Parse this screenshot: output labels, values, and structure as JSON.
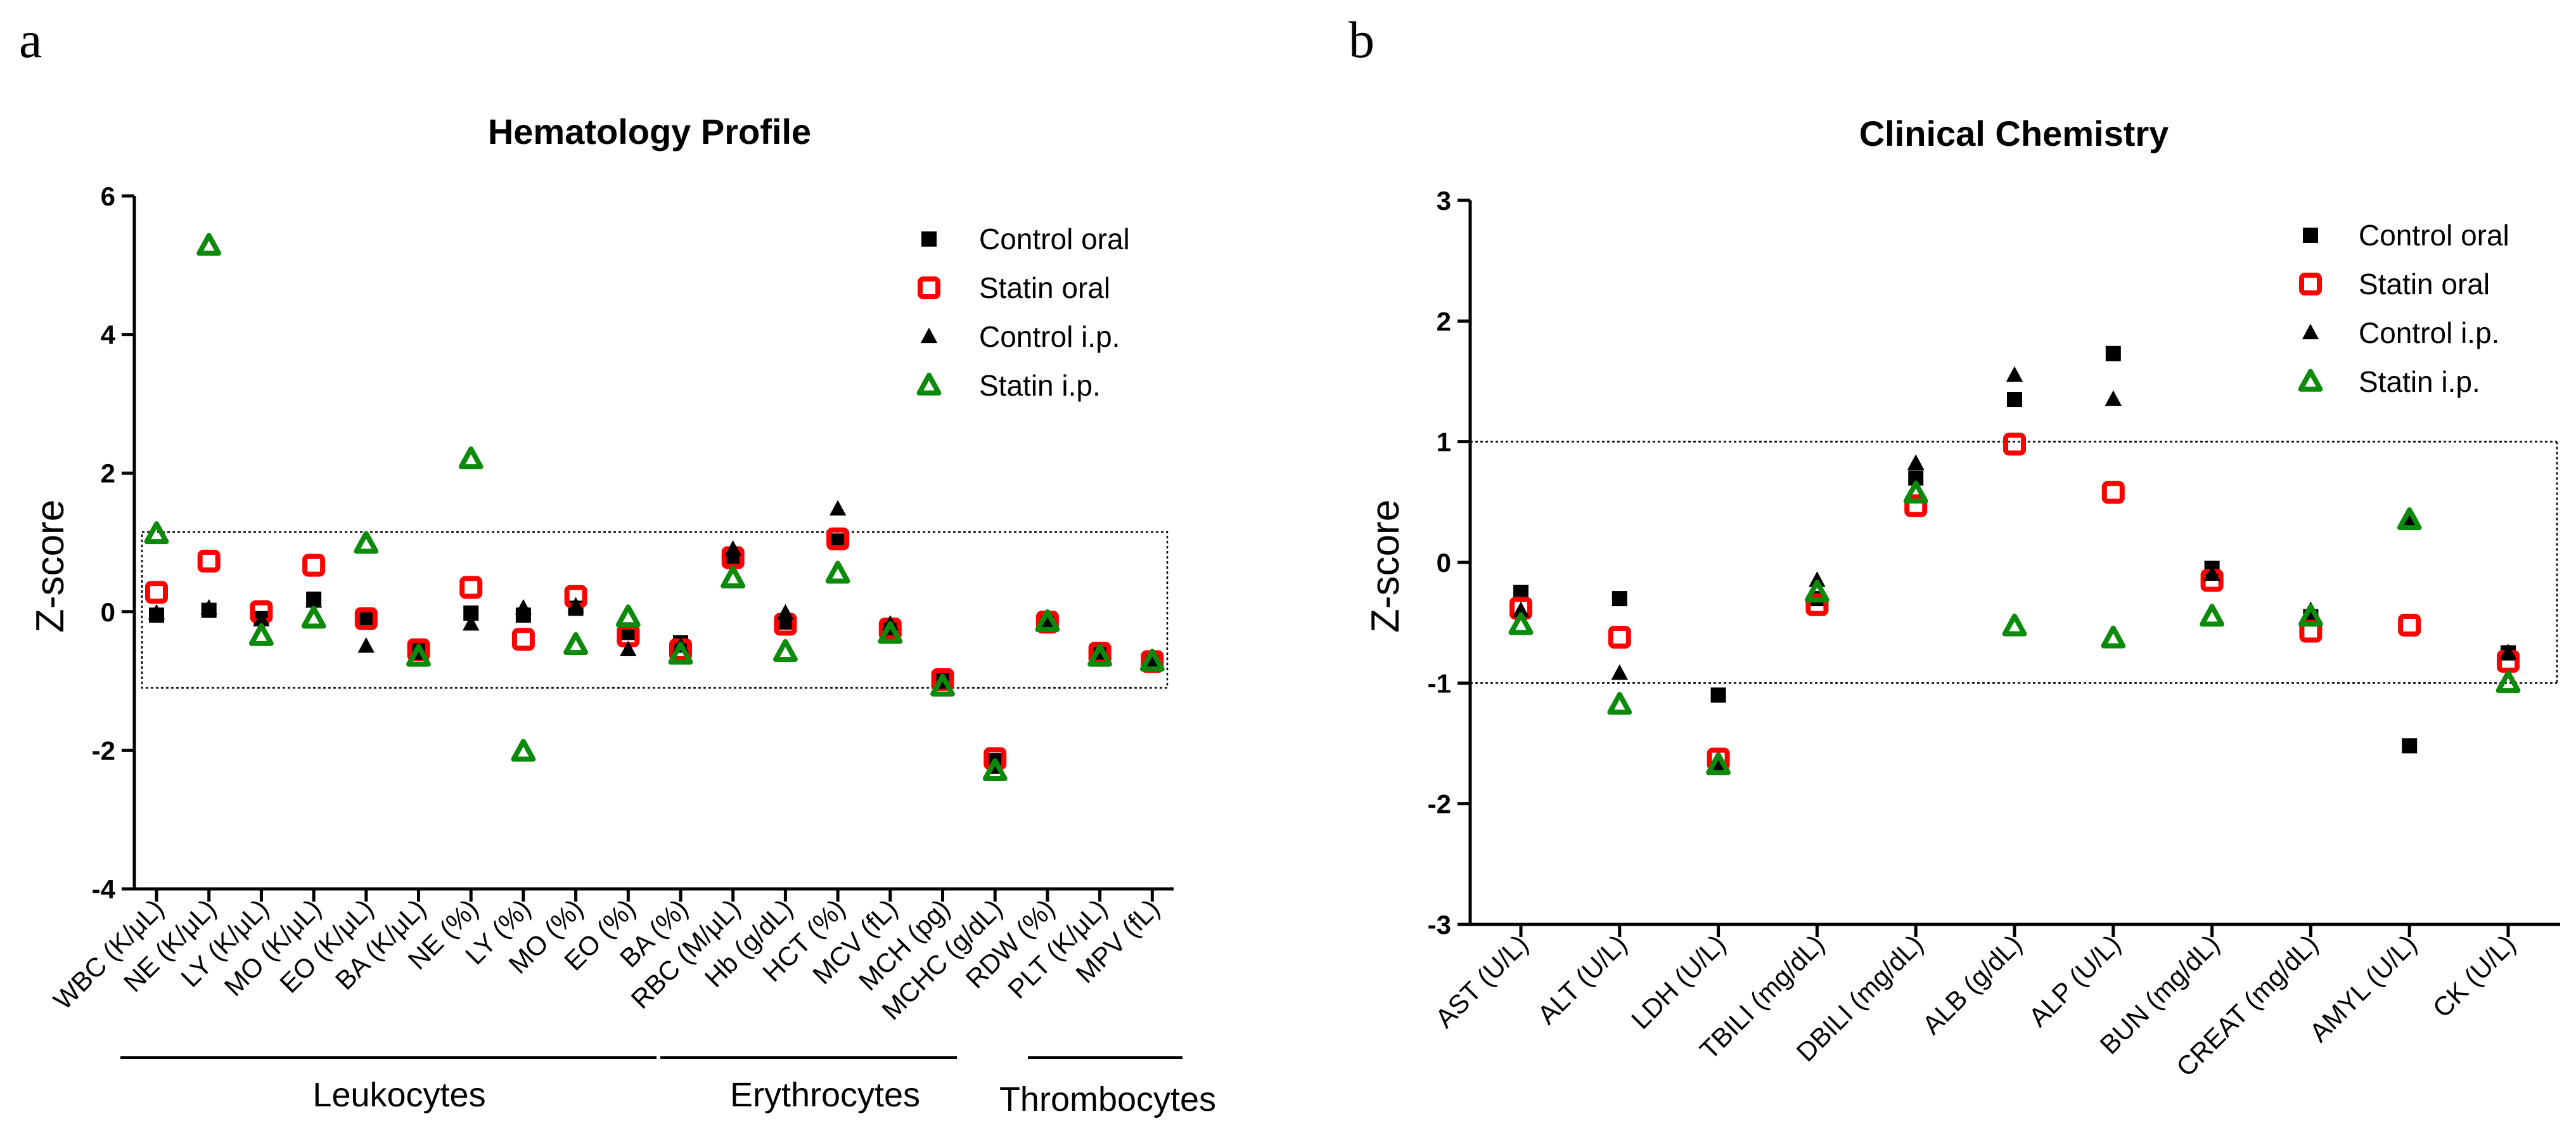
{
  "panels": [
    {
      "letter": "a",
      "title": "Hematology Profile"
    },
    {
      "letter": "b",
      "title": "Clinical Chemistry"
    }
  ],
  "legend": [
    {
      "label": "Control oral",
      "marker": "square-filled",
      "color": "#000000"
    },
    {
      "label": "Statin oral",
      "marker": "square-open",
      "color": "#ff0000"
    },
    {
      "label": "Control i.p.",
      "marker": "triangle-filled",
      "color": "#000000"
    },
    {
      "label": "Statin i.p.",
      "marker": "triangle-open",
      "color": "#0b8a0b"
    }
  ],
  "chart_data": [
    {
      "type": "scatter",
      "title": "Hematology Profile",
      "xlabel": "",
      "ylabel": "Z-score",
      "ylim": [
        -4,
        6
      ],
      "yticks": [
        "-4",
        "-2",
        "0",
        "2",
        "4",
        "6"
      ],
      "reference_band": [
        -1.1,
        1.15
      ],
      "categories": [
        "WBC (K/μL)",
        "NE (K/μL)",
        "LY (K/μL)",
        "MO (K/μL)",
        "EO (K/μL)",
        "BA (K/μL)",
        "NE (%)",
        "LY (%)",
        "MO (%)",
        "EO (%)",
        "BA (%)",
        "RBC (M/μL)",
        "Hb (g/dL)",
        "HCT (%)",
        "MCV (fL)",
        "MCH (pg)",
        "MCHC (g/dL)",
        "RDW (%)",
        "PLT (K/μL)",
        "MPV (fL)"
      ],
      "groups": [
        {
          "label": "Leukocytes",
          "from": 0,
          "to": 9
        },
        {
          "label": "Erythrocytes",
          "from": 10,
          "to": 16
        },
        {
          "label": "Thrombocytes",
          "from": 17,
          "to": 19
        }
      ],
      "series": [
        {
          "name": "Control oral",
          "values": [
            -0.05,
            0.02,
            -0.1,
            0.18,
            -0.1,
            -0.55,
            -0.02,
            -0.05,
            0.05,
            -0.3,
            -0.45,
            0.8,
            -0.15,
            1.02,
            -0.25,
            -0.95,
            -2.15,
            -0.15,
            -0.6,
            -0.7
          ]
        },
        {
          "name": "Statin oral",
          "values": [
            0.28,
            0.73,
            0.0,
            0.67,
            -0.1,
            -0.55,
            0.35,
            -0.4,
            0.22,
            -0.35,
            -0.55,
            0.78,
            -0.18,
            1.05,
            -0.25,
            -0.98,
            -2.12,
            -0.15,
            -0.6,
            -0.72
          ]
        },
        {
          "name": "Control i.p.",
          "values": [
            -0.02,
            0.05,
            -0.12,
            0.15,
            -0.5,
            -0.6,
            -0.18,
            0.05,
            0.08,
            -0.55,
            -0.5,
            0.9,
            -0.02,
            1.48,
            -0.18,
            -1.02,
            -2.25,
            -0.15,
            -0.58,
            -0.68
          ]
        },
        {
          "name": "Statin i.p.",
          "values": [
            1.12,
            5.28,
            -0.35,
            -0.1,
            0.98,
            -0.65,
            2.2,
            -2.02,
            -0.48,
            -0.08,
            -0.62,
            0.48,
            -0.58,
            0.55,
            -0.32,
            -1.08,
            -2.3,
            -0.15,
            -0.65,
            -0.72
          ]
        }
      ]
    },
    {
      "type": "scatter",
      "title": "Clinical Chemistry",
      "xlabel": "",
      "ylabel": "Z-score",
      "ylim": [
        -3,
        3
      ],
      "yticks": [
        "-3",
        "-2",
        "-1",
        "0",
        "1",
        "2",
        "3"
      ],
      "reference_lines": [
        -1,
        1
      ],
      "categories": [
        "AST (U/L)",
        "ALT (U/L)",
        "LDH (U/L)",
        "TBILI (mg/dL)",
        "DBILI (mg/dL)",
        "ALB (g/dL)",
        "ALP (U/L)",
        "BUN (mg/dL)",
        "CREAT (mg/dL)",
        "AMYL (U/L)",
        "CK (U/L)"
      ],
      "series": [
        {
          "name": "Control oral",
          "values": [
            -0.25,
            -0.3,
            -1.1,
            -0.3,
            0.7,
            1.35,
            1.73,
            -0.05,
            -0.45,
            -1.52,
            -0.75
          ]
        },
        {
          "name": "Statin oral",
          "values": [
            -0.38,
            -0.62,
            -1.63,
            -0.35,
            0.47,
            0.98,
            0.58,
            -0.15,
            -0.57,
            -0.52,
            -0.82
          ]
        },
        {
          "name": "Control i.p.",
          "values": [
            -0.4,
            -0.92,
            -1.68,
            -0.15,
            0.82,
            1.55,
            1.35,
            -0.1,
            -0.4,
            0.35,
            -0.75
          ]
        },
        {
          "name": "Statin i.p.",
          "values": [
            -0.52,
            -1.18,
            -1.68,
            -0.25,
            0.57,
            -0.53,
            -0.63,
            -0.45,
            -0.45,
            0.35,
            -1.0
          ]
        }
      ]
    }
  ]
}
